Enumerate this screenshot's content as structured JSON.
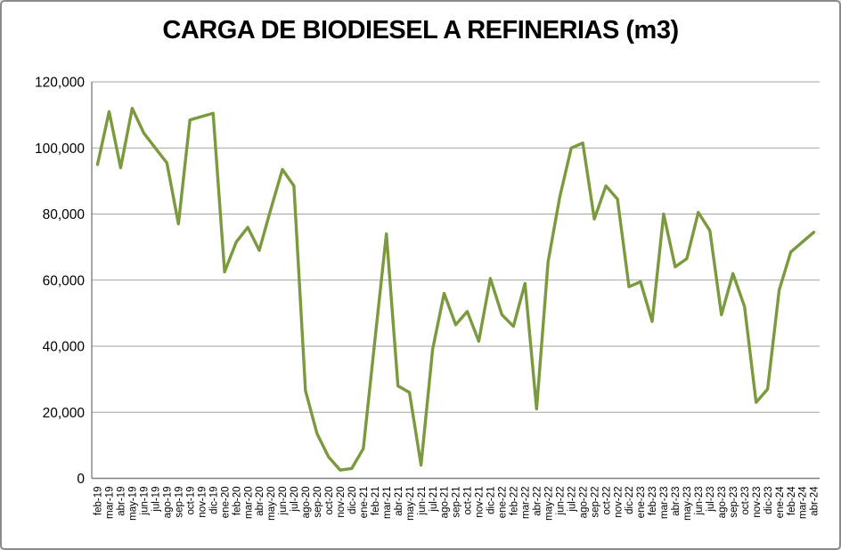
{
  "chart": {
    "title": "CARGA DE BIODIESEL A REFINERIAS (m3)"
  },
  "chart_data": {
    "type": "line",
    "title": "CARGA DE BIODIESEL A REFINERIAS (m3)",
    "xlabel": "",
    "ylabel": "",
    "ylim": [
      0,
      120000
    ],
    "y_tick_step": 20000,
    "y_tick_labels": [
      "0",
      "20,000",
      "40,000",
      "60,000",
      "80,000",
      "100,000",
      "120,000"
    ],
    "grid": true,
    "legend": false,
    "line_color": "#7A9A3D",
    "gridline_color": "#A3A3A3",
    "axis_color": "#7F7F7F",
    "text_color": "#000000",
    "background": "#FFFFFF",
    "categories": [
      "feb-19",
      "mar-19",
      "abr-19",
      "may-19",
      "jun-19",
      "jul-19",
      "ago-19",
      "sep-19",
      "oct-19",
      "nov-19",
      "dic-19",
      "ene-20",
      "feb-20",
      "mar-20",
      "abr-20",
      "may-20",
      "jun-20",
      "jul-20",
      "ago-20",
      "sep-20",
      "oct-20",
      "nov-20",
      "dic-20",
      "ene-21",
      "feb-21",
      "mar-21",
      "abr-21",
      "may-21",
      "jun-21",
      "jul-21",
      "ago-21",
      "sep-21",
      "oct-21",
      "nov-21",
      "dic-21",
      "ene-22",
      "feb-22",
      "mar-22",
      "abr-22",
      "may-22",
      "jun-22",
      "jul-22",
      "ago-22",
      "sep-22",
      "oct-22",
      "nov-22",
      "dic-22",
      "ene-23",
      "feb-23",
      "mar-23",
      "abr-23",
      "may-23",
      "jun-23",
      "jul-23",
      "ago-23",
      "sep-23",
      "oct-23",
      "nov-23",
      "dic-23",
      "ene-24",
      "feb-24",
      "mar-24",
      "abr-24"
    ],
    "values": [
      95000,
      111000,
      94000,
      112000,
      104500,
      100000,
      95500,
      77000,
      108500,
      109500,
      110500,
      62500,
      71500,
      76000,
      69000,
      81500,
      93500,
      88500,
      26500,
      13500,
      6500,
      2500,
      3000,
      9000,
      41500,
      74000,
      28000,
      26000,
      4000,
      39000,
      56000,
      46500,
      50500,
      41500,
      60500,
      49500,
      46000,
      59000,
      21000,
      65500,
      85000,
      100000,
      101500,
      78500,
      88500,
      84500,
      58000,
      59500,
      47500,
      80000,
      64000,
      66500,
      80500,
      75000,
      49500,
      62000,
      52000,
      23000,
      27000,
      57000,
      68500,
      71500,
      74500
    ]
  }
}
